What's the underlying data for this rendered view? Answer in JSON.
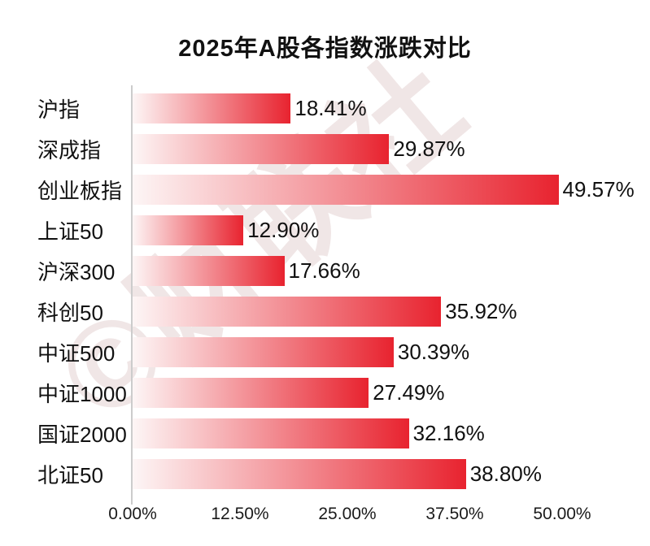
{
  "title": "2025年A股各指数涨跌对比",
  "watermark_text": "©财联社",
  "colors": {
    "bar_gradient_start": "#fdf6f6",
    "bar_gradient_end": "#e8232f",
    "axis_line": "#cccccc",
    "text": "#111111",
    "watermark": "rgba(178,128,132,0.20)"
  },
  "chart_data": {
    "type": "bar",
    "orientation": "horizontal",
    "title": "2025年A股各指数涨跌对比",
    "categories": [
      "沪指",
      "深成指",
      "创业板指",
      "上证50",
      "沪深300",
      "科创50",
      "中证500",
      "中证1000",
      "国证2000",
      "北证50"
    ],
    "values": [
      18.41,
      29.87,
      49.57,
      12.9,
      17.66,
      35.92,
      30.39,
      27.49,
      32.16,
      38.8
    ],
    "value_labels": [
      "18.41%",
      "29.87%",
      "49.57%",
      "12.90%",
      "17.66%",
      "35.92%",
      "30.39%",
      "27.49%",
      "32.16%",
      "38.80%"
    ],
    "x_ticks": [
      "0.00%",
      "12.50%",
      "25.00%",
      "37.50%",
      "50.00%"
    ],
    "xlim": [
      0,
      50
    ],
    "xlabel": "",
    "ylabel": "",
    "grid": false,
    "legend": false
  }
}
